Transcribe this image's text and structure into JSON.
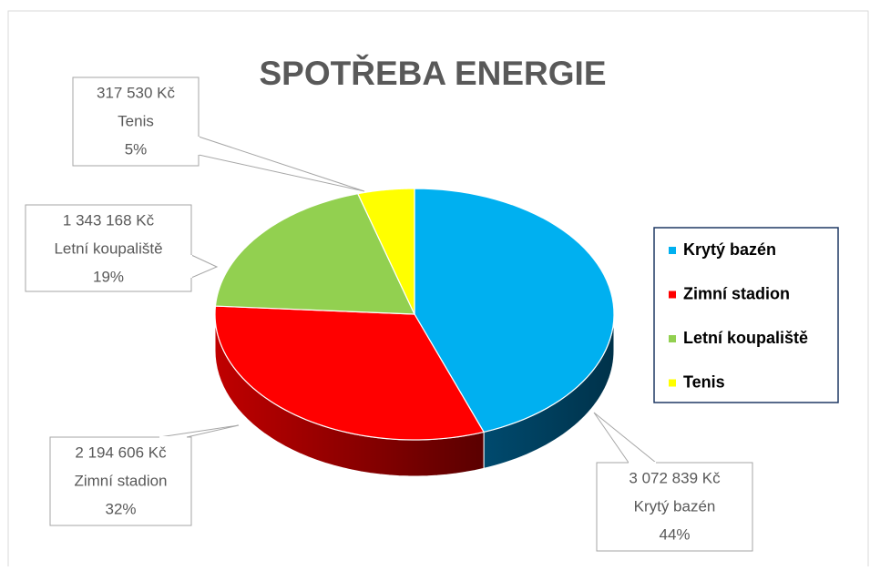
{
  "chart_data": {
    "type": "pie3d",
    "title": "SPOTŘEBA ENERGIE",
    "categories": [
      "Krytý bazén",
      "Zimní stadion",
      "Letní koupaliště",
      "Tenis"
    ],
    "values": [
      3072839,
      2194606,
      1343168,
      317530
    ],
    "value_labels": [
      "3 072 839 Kč",
      "2 194 606 Kč",
      "1 343 168 Kč",
      "317 530 Kč"
    ],
    "percent_labels": [
      "44%",
      "32%",
      "19%",
      "5%"
    ],
    "colors": [
      "#00b0f0",
      "#ff0000",
      "#92d050",
      "#ffff00"
    ],
    "legend": "right"
  }
}
